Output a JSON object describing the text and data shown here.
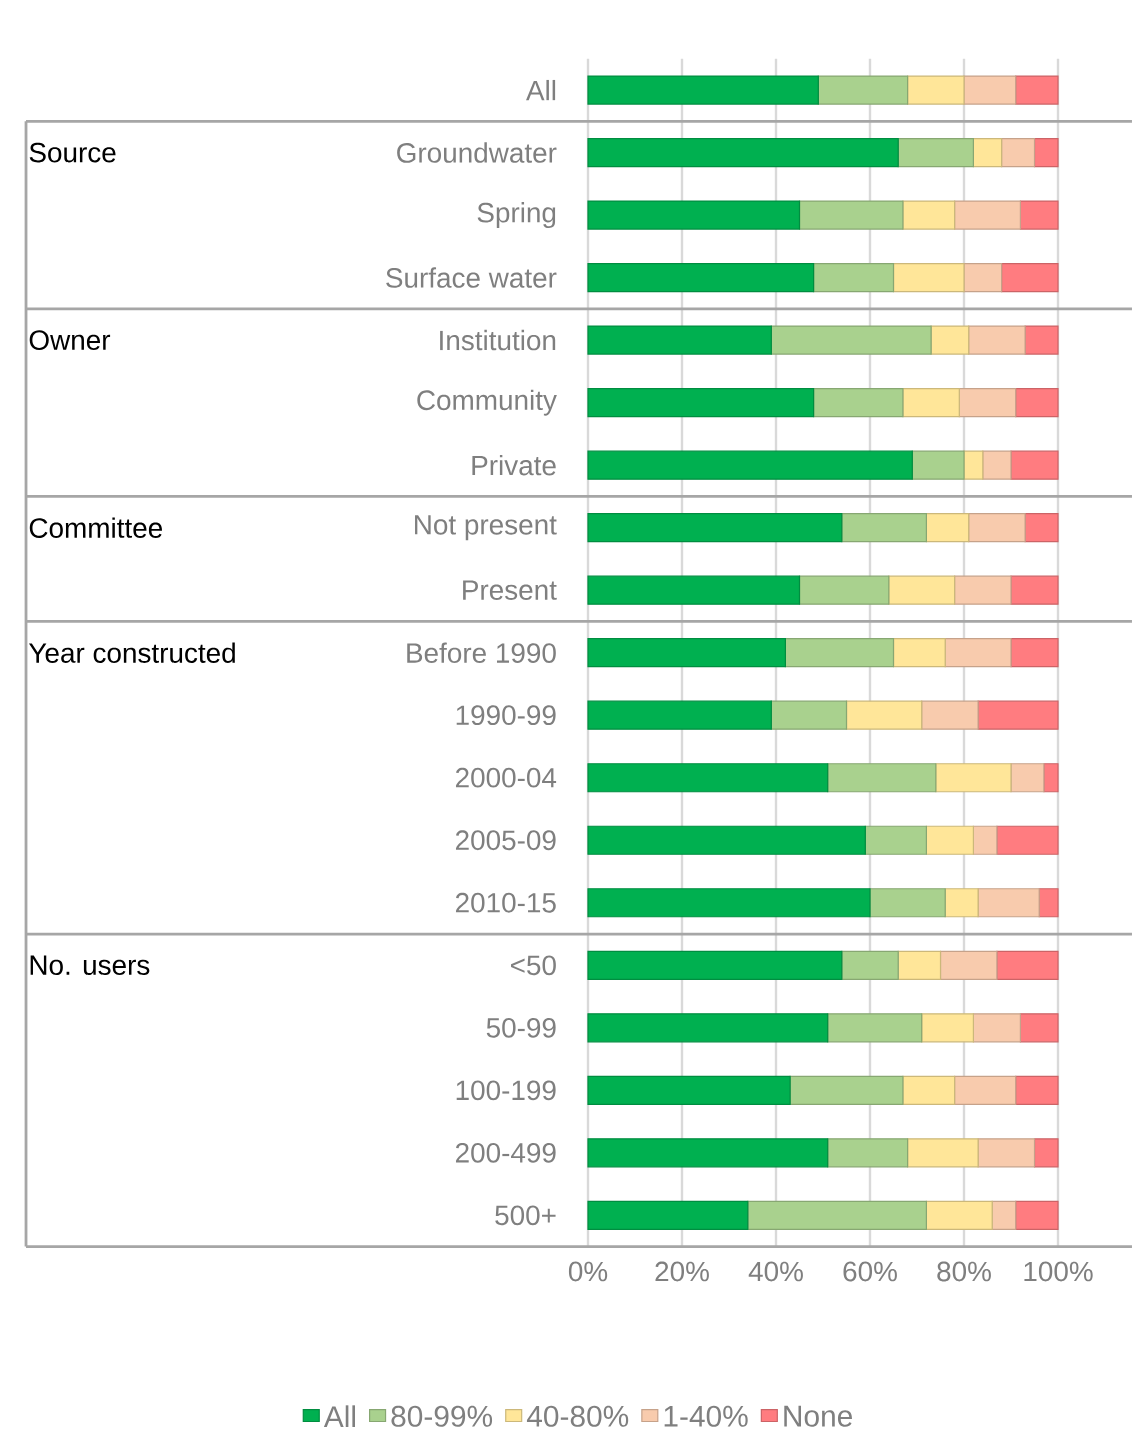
{
  "chart_data": {
    "type": "bar",
    "orientation": "horizontal",
    "stacked": true,
    "grid": "x",
    "legend": "bottom",
    "categories": [
      "All",
      "Groundwater",
      "Spring",
      "Surface water",
      "Institution",
      "Community",
      "Private",
      "Not present",
      "Present",
      "Before 1990",
      "1990-99",
      "2000-04",
      "2005-09",
      "2010-15",
      "<50",
      "50-99",
      "100-199",
      "200-499",
      "500+"
    ],
    "series": [
      {
        "name": "All",
        "color": "#00b050",
        "values": [
          49,
          66,
          45,
          48,
          39,
          48,
          69,
          54,
          45,
          42,
          39,
          51,
          59,
          60,
          54,
          51,
          43,
          51,
          34
        ]
      },
      {
        "name": "80-99%",
        "color": "#a9d18e",
        "values": [
          19,
          16,
          22,
          17,
          34,
          19,
          11,
          18,
          19,
          23,
          16,
          23,
          13,
          16,
          12,
          20,
          24,
          17,
          38
        ]
      },
      {
        "name": "40-80%",
        "color": "#ffe699",
        "values": [
          12,
          6,
          11,
          15,
          8,
          12,
          4,
          9,
          14,
          11,
          16,
          16,
          10,
          7,
          9,
          11,
          11,
          15,
          14
        ]
      },
      {
        "name": "1-40%",
        "color": "#f8cbad",
        "values": [
          11,
          7,
          14,
          8,
          12,
          12,
          6,
          12,
          12,
          14,
          12,
          7,
          5,
          13,
          12,
          10,
          13,
          12,
          5
        ]
      },
      {
        "name": "None",
        "color": "#ff7c80",
        "values": [
          9,
          5,
          8,
          12,
          7,
          9,
          10,
          7,
          10,
          10,
          17,
          3,
          13,
          4,
          13,
          8,
          9,
          5,
          9
        ]
      }
    ],
    "xlim": [
      0,
      100
    ],
    "xticks": [
      {
        "value": 0,
        "label": "0%"
      },
      {
        "value": 20,
        "label": "20%"
      },
      {
        "value": 40,
        "label": "40%"
      },
      {
        "value": 60,
        "label": "60%"
      },
      {
        "value": 80,
        "label": "80%"
      },
      {
        "value": 100,
        "label": "100%"
      }
    ],
    "annotations": [
      "Source",
      "Owner",
      "Committee",
      "Year constructed",
      "No. users"
    ]
  }
}
